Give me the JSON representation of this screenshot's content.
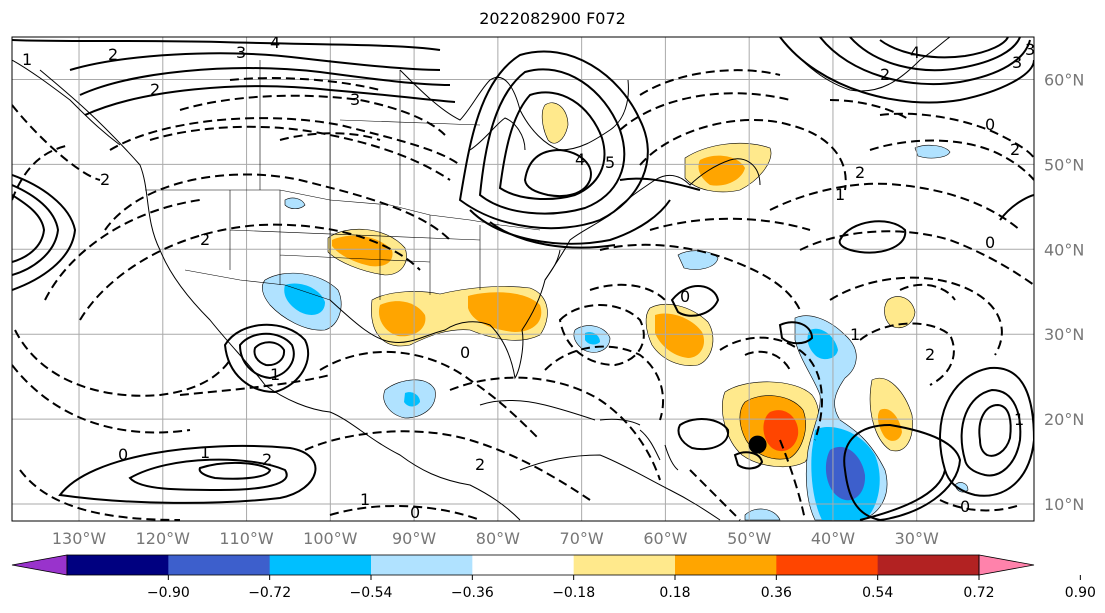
{
  "title": "2022082900 F072",
  "map": {
    "lon_range": [
      -138,
      -16
    ],
    "lat_range": [
      8,
      65
    ],
    "lon_ticks": [
      {
        "value": -130,
        "label": "130°W"
      },
      {
        "value": -120,
        "label": "120°W"
      },
      {
        "value": -110,
        "label": "110°W"
      },
      {
        "value": -100,
        "label": "100°W"
      },
      {
        "value": -90,
        "label": "90°W"
      },
      {
        "value": -80,
        "label": "80°W"
      },
      {
        "value": -70,
        "label": "70°W"
      },
      {
        "value": -60,
        "label": "60°W"
      },
      {
        "value": -50,
        "label": "50°W"
      },
      {
        "value": -40,
        "label": "40°W"
      },
      {
        "value": -30,
        "label": "30°W"
      }
    ],
    "lat_ticks": [
      {
        "value": 60,
        "label": "60°N"
      },
      {
        "value": 50,
        "label": "50°N"
      },
      {
        "value": 40,
        "label": "40°N"
      },
      {
        "value": 30,
        "label": "30°N"
      },
      {
        "value": 20,
        "label": "20°N"
      },
      {
        "value": 10,
        "label": "10°N"
      }
    ],
    "marker": {
      "lon": -49,
      "lat": 17
    }
  },
  "colorbar": {
    "boundaries": [
      -0.9,
      -0.72,
      -0.54,
      -0.36,
      -0.18,
      0.18,
      0.36,
      0.54,
      0.72,
      0.9
    ],
    "labels": [
      "−0.90",
      "−0.72",
      "−0.54",
      "−0.36",
      "−0.18",
      "0.18",
      "0.36",
      "0.54",
      "0.72",
      "0.90"
    ],
    "colors": [
      "#9933cc",
      "#000080",
      "#3d5fcc",
      "#00bfff",
      "#b0e2ff",
      "#ffffff",
      "#ffe98c",
      "#ffa500",
      "#ff4500",
      "#b22222",
      "#ff82ab"
    ]
  },
  "contour_labels": [
    "2",
    "3",
    "4",
    "2",
    "3",
    "4",
    "5",
    "4",
    "3",
    "2",
    "3",
    "2",
    "0",
    "1",
    "2",
    "1",
    "0",
    "2",
    "0",
    "2",
    "1",
    "1",
    "2",
    "0",
    "1",
    "2",
    "1",
    "0",
    "1",
    "0",
    "2",
    "0"
  ]
}
